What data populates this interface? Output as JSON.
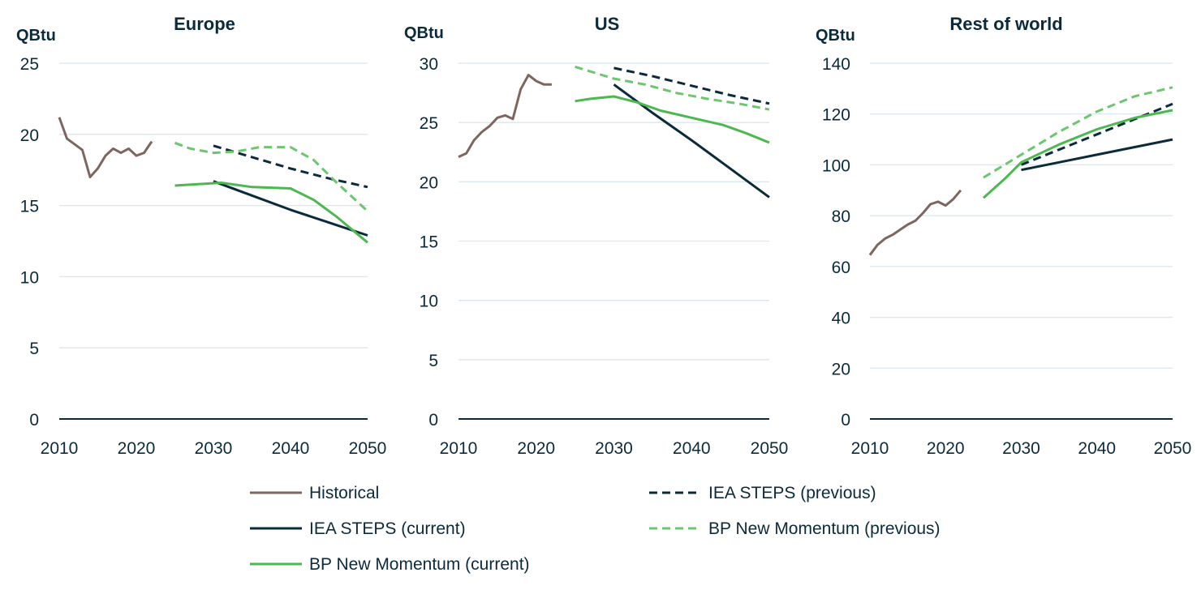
{
  "series_styles": [
    {
      "name": "Historical",
      "color": "#7d6660",
      "dashed": false
    },
    {
      "name": "IEA STEPS (previous)",
      "color": "#0b2a3a",
      "dashed": true
    },
    {
      "name": "IEA STEPS (current)",
      "color": "#0b2a3a",
      "dashed": false
    },
    {
      "name": "BP New Momentum (previous)",
      "color": "#6cc66f",
      "dashed": true
    },
    {
      "name": "BP New Momentum (current)",
      "color": "#4cb84f",
      "dashed": false
    }
  ],
  "legend": {
    "placement": "bottom",
    "items": [
      "Historical",
      "IEA STEPS (previous)",
      "IEA STEPS (current)",
      "BP New Momentum (previous)",
      "BP New Momentum (current)"
    ]
  },
  "chart_data": [
    {
      "type": "line",
      "title": "Europe",
      "ylabel": "QBtu",
      "xlim": [
        2010,
        2050
      ],
      "ylim": [
        0,
        25
      ],
      "xticks": [
        2010,
        2020,
        2030,
        2040,
        2050
      ],
      "yticks": [
        0,
        5,
        10,
        15,
        20,
        25
      ],
      "grid": true,
      "series": [
        {
          "name": "Historical",
          "x": [
            2010,
            2011,
            2012,
            2013,
            2014,
            2015,
            2016,
            2017,
            2018,
            2019,
            2020,
            2021,
            2022
          ],
          "y": [
            21.2,
            19.7,
            19.3,
            18.9,
            17.0,
            17.6,
            18.5,
            19.0,
            18.7,
            19.0,
            18.5,
            18.7,
            19.5
          ]
        },
        {
          "name": "IEA STEPS (previous)",
          "x": [
            2030,
            2035,
            2040,
            2045,
            2050
          ],
          "y": [
            19.2,
            18.4,
            17.6,
            16.9,
            16.3
          ]
        },
        {
          "name": "IEA STEPS (current)",
          "x": [
            2030,
            2035,
            2040,
            2045,
            2050
          ],
          "y": [
            16.7,
            15.7,
            14.7,
            13.8,
            12.9
          ]
        },
        {
          "name": "BP New Momentum (previous)",
          "x": [
            2025,
            2027,
            2030,
            2033,
            2036,
            2040,
            2043,
            2046,
            2050
          ],
          "y": [
            19.4,
            19.0,
            18.7,
            18.8,
            19.1,
            19.1,
            18.2,
            16.6,
            14.6
          ]
        },
        {
          "name": "BP New Momentum (current)",
          "x": [
            2025,
            2028,
            2031,
            2035,
            2040,
            2043,
            2046,
            2050
          ],
          "y": [
            16.4,
            16.5,
            16.6,
            16.3,
            16.2,
            15.4,
            14.2,
            12.4
          ]
        }
      ]
    },
    {
      "type": "line",
      "title": "US",
      "ylabel": "QBtu",
      "xlim": [
        2010,
        2050
      ],
      "ylim": [
        0,
        30
      ],
      "xticks": [
        2010,
        2020,
        2030,
        2040,
        2050
      ],
      "yticks": [
        0,
        5,
        10,
        15,
        20,
        25,
        30
      ],
      "grid": true,
      "series": [
        {
          "name": "Historical",
          "x": [
            2010,
            2011,
            2012,
            2013,
            2014,
            2015,
            2016,
            2017,
            2018,
            2019,
            2020,
            2021,
            2022
          ],
          "y": [
            22.1,
            22.4,
            23.5,
            24.2,
            24.7,
            25.4,
            25.6,
            25.3,
            27.8,
            29.0,
            28.5,
            28.2,
            28.2
          ]
        },
        {
          "name": "IEA STEPS (previous)",
          "x": [
            2030,
            2035,
            2040,
            2045,
            2050
          ],
          "y": [
            29.6,
            28.9,
            28.1,
            27.3,
            26.6
          ]
        },
        {
          "name": "IEA STEPS (current)",
          "x": [
            2030,
            2035,
            2040,
            2045,
            2050
          ],
          "y": [
            28.2,
            25.8,
            23.5,
            21.1,
            18.7
          ]
        },
        {
          "name": "BP New Momentum (previous)",
          "x": [
            2025,
            2028,
            2030,
            2034,
            2038,
            2042,
            2046,
            2050
          ],
          "y": [
            29.7,
            29.1,
            28.7,
            28.2,
            27.5,
            27.0,
            26.6,
            26.1
          ]
        },
        {
          "name": "BP New Momentum (current)",
          "x": [
            2025,
            2027,
            2030,
            2033,
            2036,
            2040,
            2044,
            2047,
            2050
          ],
          "y": [
            26.8,
            27.0,
            27.2,
            26.7,
            26.0,
            25.4,
            24.8,
            24.1,
            23.3
          ]
        }
      ]
    },
    {
      "type": "line",
      "title": "Rest of world",
      "ylabel": "QBtu",
      "xlim": [
        2010,
        2050
      ],
      "ylim": [
        0,
        140
      ],
      "xticks": [
        2010,
        2020,
        2030,
        2040,
        2050
      ],
      "yticks": [
        0,
        20,
        40,
        60,
        80,
        100,
        120,
        140
      ],
      "grid": true,
      "series": [
        {
          "name": "Historical",
          "x": [
            2010,
            2011,
            2012,
            2013,
            2014,
            2015,
            2016,
            2017,
            2018,
            2019,
            2020,
            2021,
            2022
          ],
          "y": [
            64.5,
            68.5,
            71.0,
            72.5,
            74.5,
            76.5,
            78.0,
            81.0,
            84.5,
            85.5,
            84.0,
            86.5,
            90.0
          ]
        },
        {
          "name": "IEA STEPS (previous)",
          "x": [
            2030,
            2035,
            2040,
            2045,
            2050
          ],
          "y": [
            100.0,
            106.0,
            112.0,
            118.0,
            124.0
          ]
        },
        {
          "name": "IEA STEPS (current)",
          "x": [
            2030,
            2035,
            2040,
            2045,
            2050
          ],
          "y": [
            98.0,
            101.0,
            104.0,
            107.0,
            110.0
          ]
        },
        {
          "name": "BP New Momentum (previous)",
          "x": [
            2025,
            2030,
            2035,
            2040,
            2045,
            2050
          ],
          "y": [
            95.0,
            104.0,
            113.0,
            121.0,
            127.0,
            130.5
          ]
        },
        {
          "name": "BP New Momentum (current)",
          "x": [
            2025,
            2028,
            2030,
            2035,
            2040,
            2045,
            2050
          ],
          "y": [
            87.0,
            95.0,
            101.0,
            108.0,
            114.0,
            118.5,
            121.5
          ]
        }
      ]
    }
  ]
}
